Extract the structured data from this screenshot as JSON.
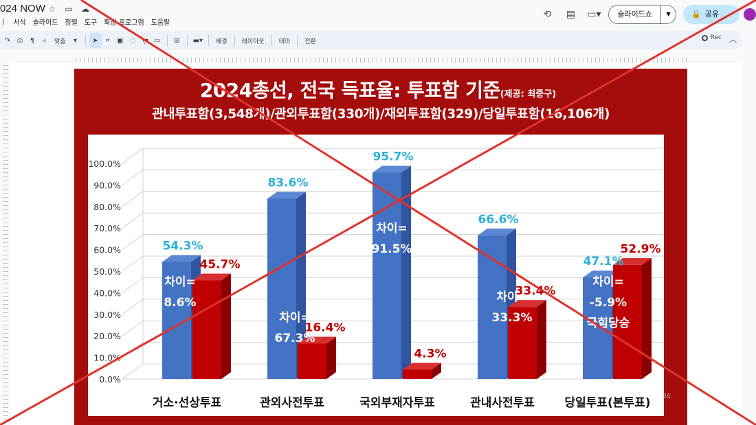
{
  "app": {
    "doc_title": "024 NOW",
    "menu": [
      "ㅣ",
      "서식",
      "슬라이드",
      "정렬",
      "도구",
      "확장 프로그램",
      "도움말"
    ],
    "slideshow_label": "슬라이드쇼",
    "share_label": "공유",
    "toolbar": {
      "zoom_label": "맞춤",
      "background_label": "배경",
      "layout_label": "레이아웃",
      "theme_label": "테마",
      "transition_label": "전환",
      "rec_label": "Rec"
    },
    "page_number": "24"
  },
  "chart_data": {
    "type": "bar",
    "title": "2024총선, 전국 득표율: 투표함 기준",
    "title_credit": "(제공: 최중구)",
    "subtitle": "관내투표함(3,548개)/관외투표함(330개)/재외투표함(329)/당일투표함(16,106개)",
    "categories": [
      "거소·선상투표",
      "관외사전투표",
      "국외부재자투표",
      "관내사전투표",
      "당일투표(본투표)"
    ],
    "series": [
      {
        "color": "#4472c4",
        "values": [
          54.3,
          83.6,
          95.7,
          66.6,
          47.1
        ]
      },
      {
        "color": "#c00000",
        "values": [
          45.7,
          16.4,
          4.3,
          33.4,
          52.9
        ]
      }
    ],
    "value_labels": {
      "blue": [
        "54.3%",
        "83.6%",
        "95.7%",
        "66.6%",
        "47.1%"
      ],
      "red": [
        "45.7%",
        "16.4%",
        "4.3%",
        "33.4%",
        "52.9%"
      ]
    },
    "difference_notes": [
      [
        "차이=",
        "8.6%"
      ],
      [
        "차이=",
        "67.3%"
      ],
      [
        "차이=",
        "91.5%"
      ],
      [
        "차이=",
        "33.3%"
      ],
      [
        "차이=",
        "-5.9%",
        "국힘당승"
      ]
    ],
    "y_ticks": [
      "0.0%",
      "10.0%",
      "20.0%",
      "30.0%",
      "40.0%",
      "50.0%",
      "60.0%",
      "70.0%",
      "80.0%",
      "90.0%",
      "100.0%"
    ],
    "ylim": [
      0,
      100
    ],
    "grid": true,
    "label_colors": {
      "blue_label": "#2ab0d6",
      "red_label": "#c00000",
      "frame": "#a50d0d"
    }
  },
  "overlay": {
    "color": "#e0322b"
  }
}
